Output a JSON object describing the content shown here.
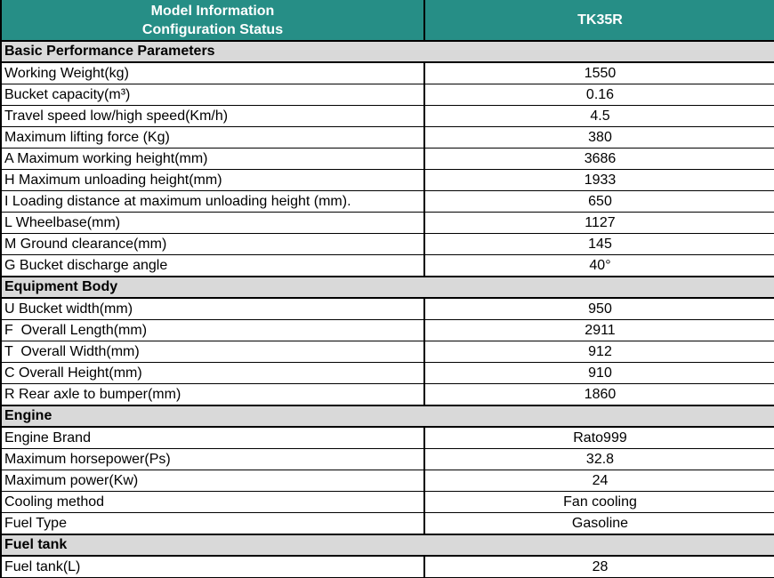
{
  "header": {
    "left_line1": "Model Information",
    "left_line2": "Configuration Status",
    "model": "TK35R"
  },
  "colors": {
    "header_bg": "#268e86",
    "header_text": "#ffffff",
    "section_bg": "#d9d9d9",
    "border": "#000000",
    "row_bg": "#ffffff"
  },
  "sections": [
    {
      "title": "Basic Performance Parameters",
      "rows": [
        {
          "label": "Working Weight(kg)",
          "value": "1550"
        },
        {
          "label": "Bucket capacity(m³)",
          "value": "0.16"
        },
        {
          "label": "Travel speed low/high speed(Km/h)",
          "value": "4.5"
        },
        {
          "label": "Maximum lifting force (Kg)",
          "value": "380"
        },
        {
          "label": "A Maximum working height(mm)",
          "value": "3686"
        },
        {
          "label": "H Maximum unloading height(mm)",
          "value": "1933"
        },
        {
          "label": "I Loading distance at maximum unloading height (mm).",
          "value": "650"
        },
        {
          "label": "L Wheelbase(mm)",
          "value": "1127"
        },
        {
          "label": "M Ground clearance(mm)",
          "value": "145"
        },
        {
          "label": "G Bucket discharge angle",
          "value": "40°"
        }
      ]
    },
    {
      "title": "Equipment Body",
      "rows": [
        {
          "label": "U Bucket width(mm)",
          "value": "950"
        },
        {
          "label": "F  Overall Length(mm)",
          "value": "2911"
        },
        {
          "label": "T  Overall Width(mm)",
          "value": "912"
        },
        {
          "label": "C Overall Height(mm)",
          "value": "910"
        },
        {
          "label": "R Rear axle to bumper(mm)",
          "value": "1860"
        }
      ]
    },
    {
      "title": "Engine",
      "rows": [
        {
          "label": "Engine Brand",
          "value": "Rato999"
        },
        {
          "label": "Maximum horsepower(Ps)",
          "value": "32.8"
        },
        {
          "label": "Maximum power(Kw)",
          "value": "24"
        },
        {
          "label": "Cooling method",
          "value": "Fan cooling"
        },
        {
          "label": "Fuel Type",
          "value": "Gasoline"
        }
      ]
    },
    {
      "title": "Fuel tank",
      "rows": [
        {
          "label": "Fuel tank(L)",
          "value": "28"
        }
      ]
    }
  ]
}
